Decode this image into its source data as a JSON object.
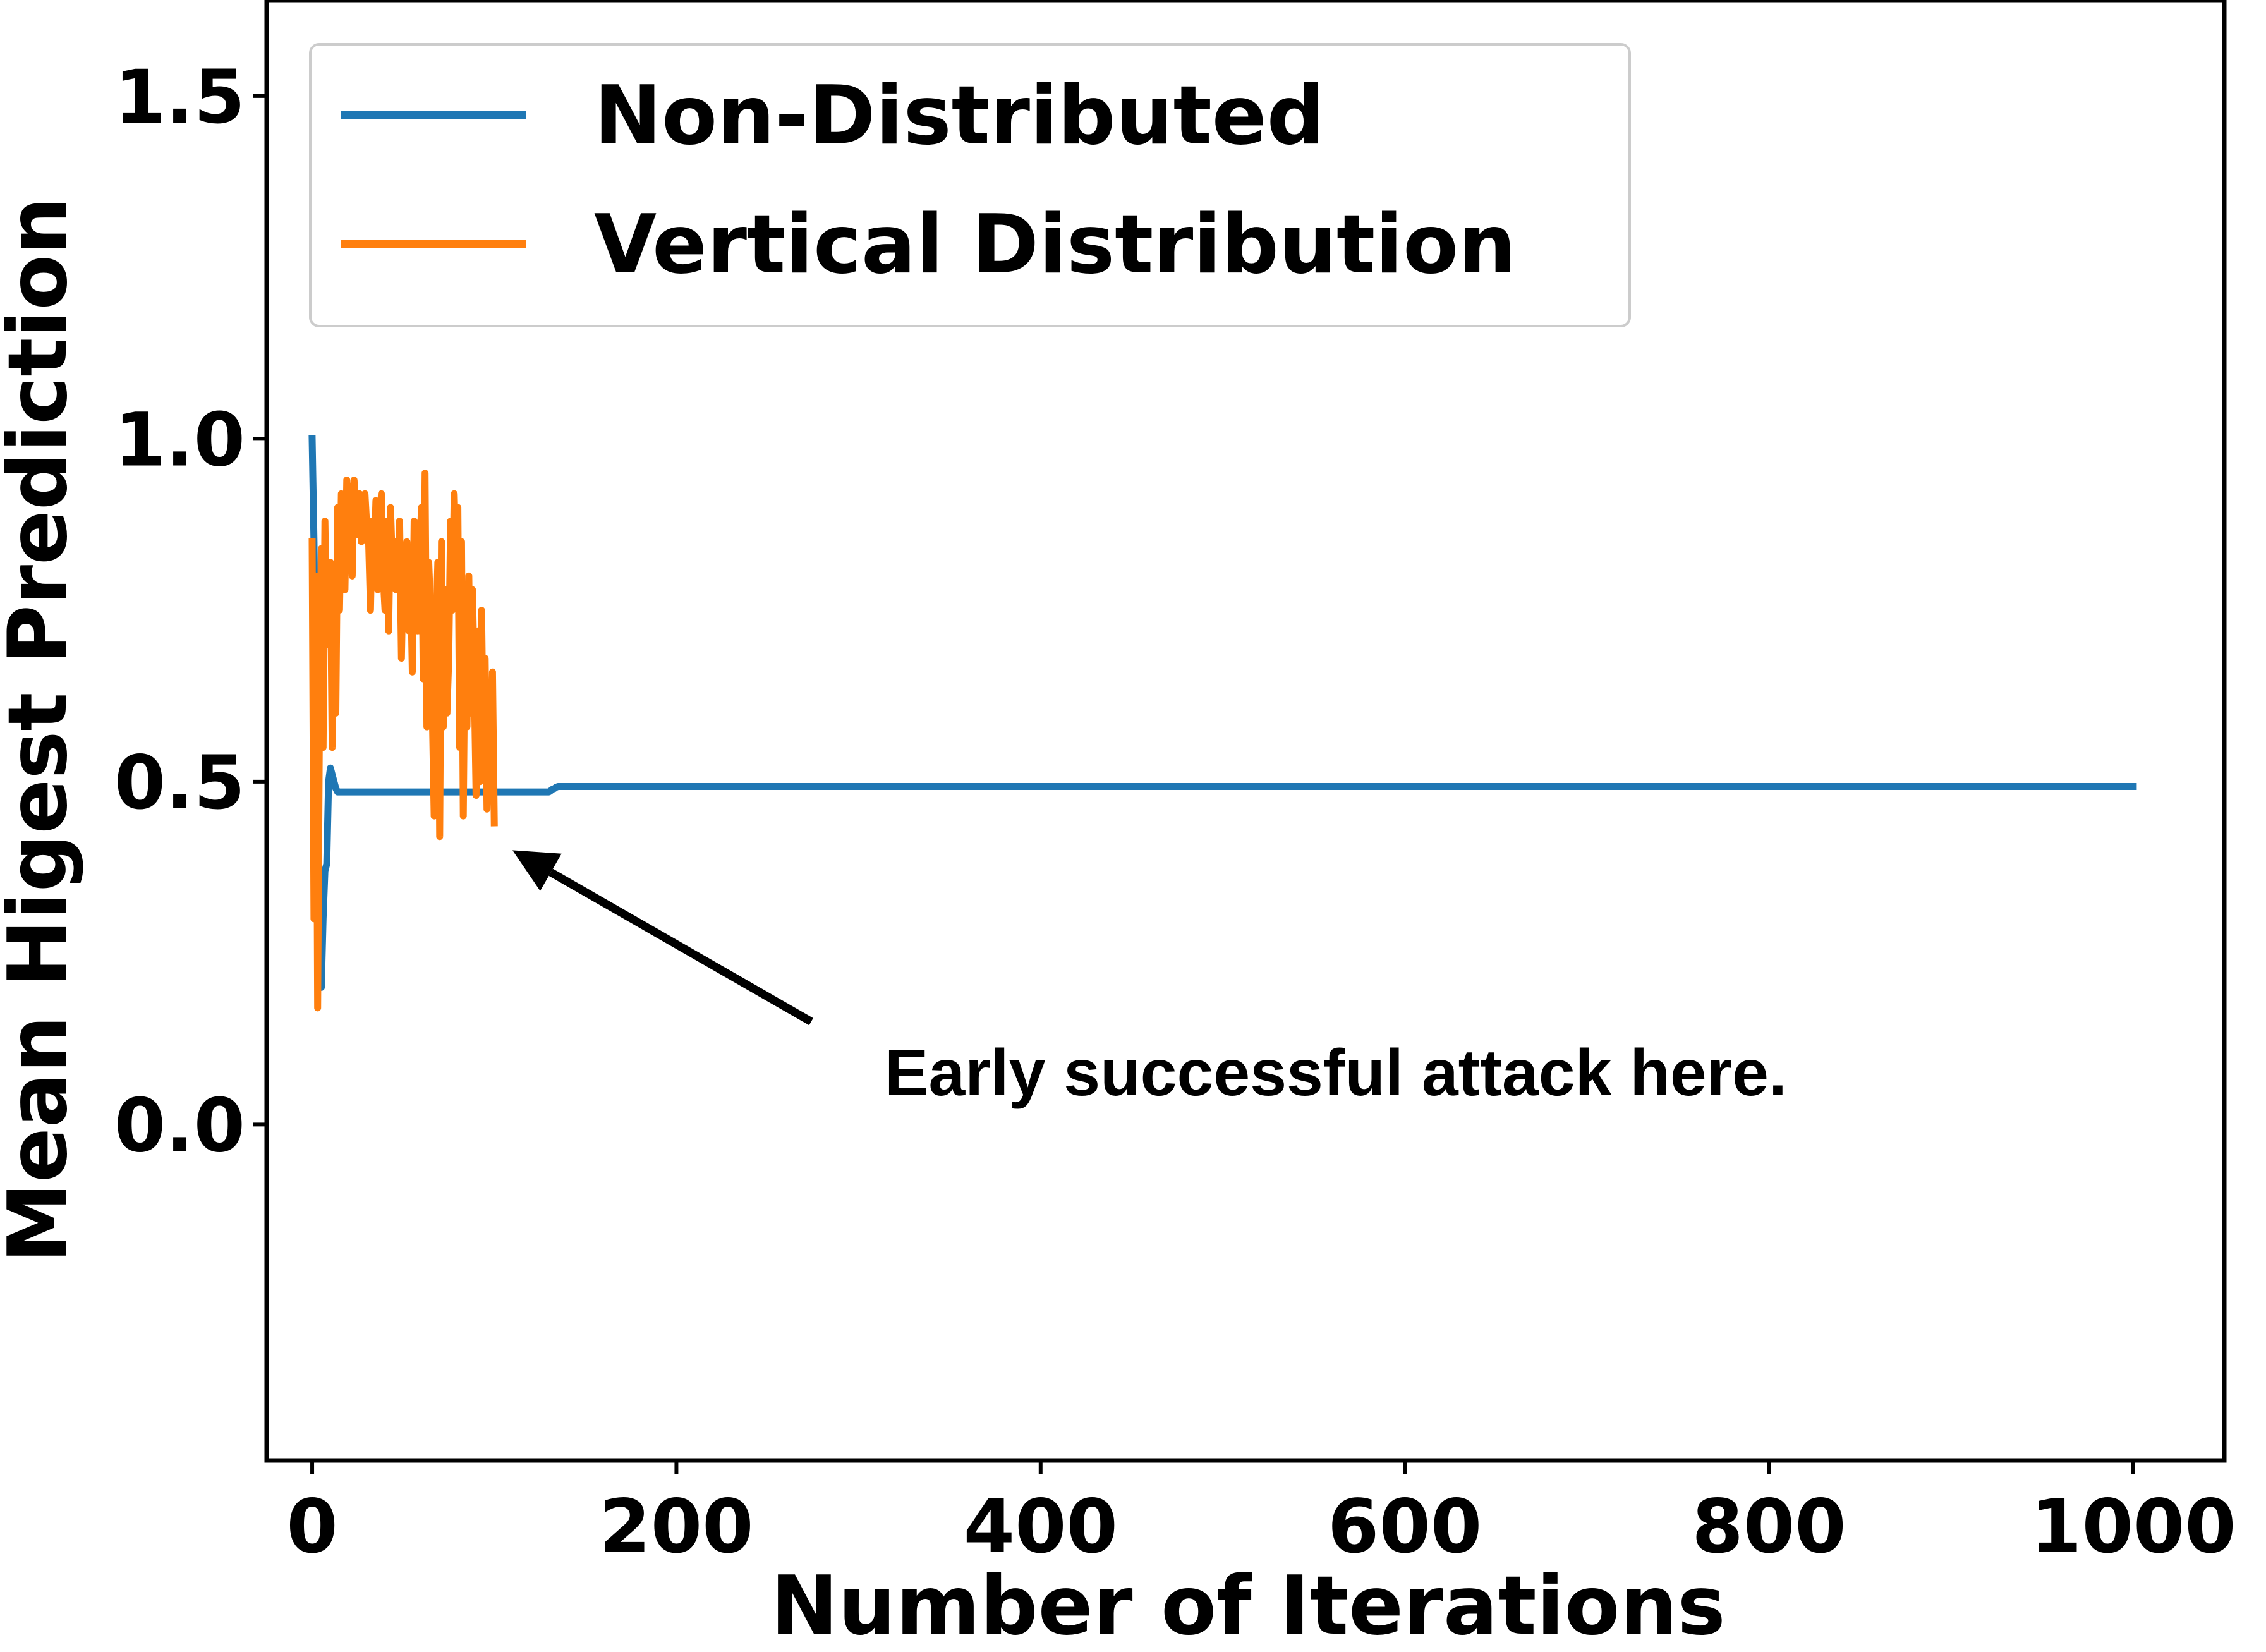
{
  "chart_data": {
    "type": "line",
    "title": "",
    "xlabel": "Number of Iterations",
    "ylabel": "Mean Higest Prediction",
    "xlim": [
      -25,
      1050
    ],
    "ylim": [
      -0.49,
      1.64
    ],
    "xticks": [
      0,
      200,
      400,
      600,
      800,
      1000
    ],
    "xtick_labels": [
      "0",
      "200",
      "400",
      "600",
      "800",
      "1000"
    ],
    "yticks": [
      0.0,
      0.5,
      1.0,
      1.5
    ],
    "ytick_labels": [
      "0.0",
      "0.5",
      "1.0",
      "1.5"
    ],
    "grid": false,
    "legend_position": "top-left",
    "series": [
      {
        "name": "Non-Distributed",
        "color": "#1f77b4",
        "x": [
          0,
          1,
          2,
          3,
          4,
          5,
          6,
          7,
          8,
          9,
          10,
          11,
          12,
          13,
          14,
          16,
          20,
          40,
          80,
          130,
          131,
          132,
          133,
          134,
          135,
          136,
          140,
          200,
          400,
          600,
          800,
          1000
        ],
        "y": [
          1.0,
          0.85,
          0.6,
          0.35,
          0.2,
          0.2,
          0.3,
          0.37,
          0.38,
          0.5,
          0.52,
          0.51,
          0.5,
          0.49,
          0.485,
          0.485,
          0.485,
          0.485,
          0.485,
          0.485,
          0.487,
          0.489,
          0.49,
          0.492,
          0.493,
          0.493,
          0.493,
          0.493,
          0.493,
          0.493,
          0.493,
          0.493
        ]
      },
      {
        "name": "Vertical Distribution",
        "color": "#ff7f0e",
        "x": [
          0,
          1,
          2,
          3,
          4,
          5,
          6,
          7,
          8,
          9,
          10,
          11,
          12,
          13,
          14,
          15,
          16,
          17,
          18,
          19,
          20,
          21,
          22,
          23,
          24,
          25,
          26,
          27,
          28,
          29,
          30,
          31,
          32,
          33,
          34,
          35,
          36,
          37,
          38,
          39,
          40,
          41,
          42,
          43,
          44,
          45,
          46,
          47,
          48,
          49,
          50,
          51,
          52,
          53,
          54,
          55,
          56,
          57,
          58,
          59,
          60,
          61,
          62,
          63,
          64,
          65,
          66,
          67,
          68,
          69,
          70,
          71,
          72,
          73,
          74,
          75,
          76,
          77,
          78,
          79,
          80,
          81,
          82,
          83,
          84,
          85,
          86,
          87,
          88,
          89,
          90,
          91,
          92,
          93,
          94,
          95,
          96,
          97,
          98,
          99,
          100
        ],
        "y": [
          0.85,
          0.3,
          0.8,
          0.17,
          0.6,
          0.84,
          0.55,
          0.88,
          0.7,
          0.78,
          0.82,
          0.55,
          0.8,
          0.6,
          0.9,
          0.75,
          0.92,
          0.85,
          0.78,
          0.94,
          0.88,
          0.93,
          0.8,
          0.94,
          0.9,
          0.86,
          0.92,
          0.85,
          0.88,
          0.92,
          0.87,
          0.85,
          0.75,
          0.88,
          0.82,
          0.91,
          0.78,
          0.85,
          0.92,
          0.8,
          0.75,
          0.88,
          0.72,
          0.9,
          0.82,
          0.85,
          0.78,
          0.8,
          0.88,
          0.68,
          0.82,
          0.78,
          0.85,
          0.72,
          0.8,
          0.66,
          0.88,
          0.78,
          0.72,
          0.83,
          0.9,
          0.65,
          0.95,
          0.58,
          0.82,
          0.75,
          0.6,
          0.45,
          0.72,
          0.82,
          0.42,
          0.85,
          0.58,
          0.78,
          0.6,
          0.68,
          0.88,
          0.75,
          0.92,
          0.82,
          0.9,
          0.55,
          0.85,
          0.45,
          0.75,
          0.58,
          0.8,
          0.6,
          0.78,
          0.65,
          0.48,
          0.72,
          0.5,
          0.75,
          0.55,
          0.68,
          0.46,
          0.62,
          0.5,
          0.66,
          0.44
        ]
      }
    ],
    "annotations": [
      {
        "text": "Early successful attack here.",
        "points_to": [
          110,
          0.4
        ],
        "text_anchor": [
          274,
          0.15
        ]
      }
    ]
  }
}
